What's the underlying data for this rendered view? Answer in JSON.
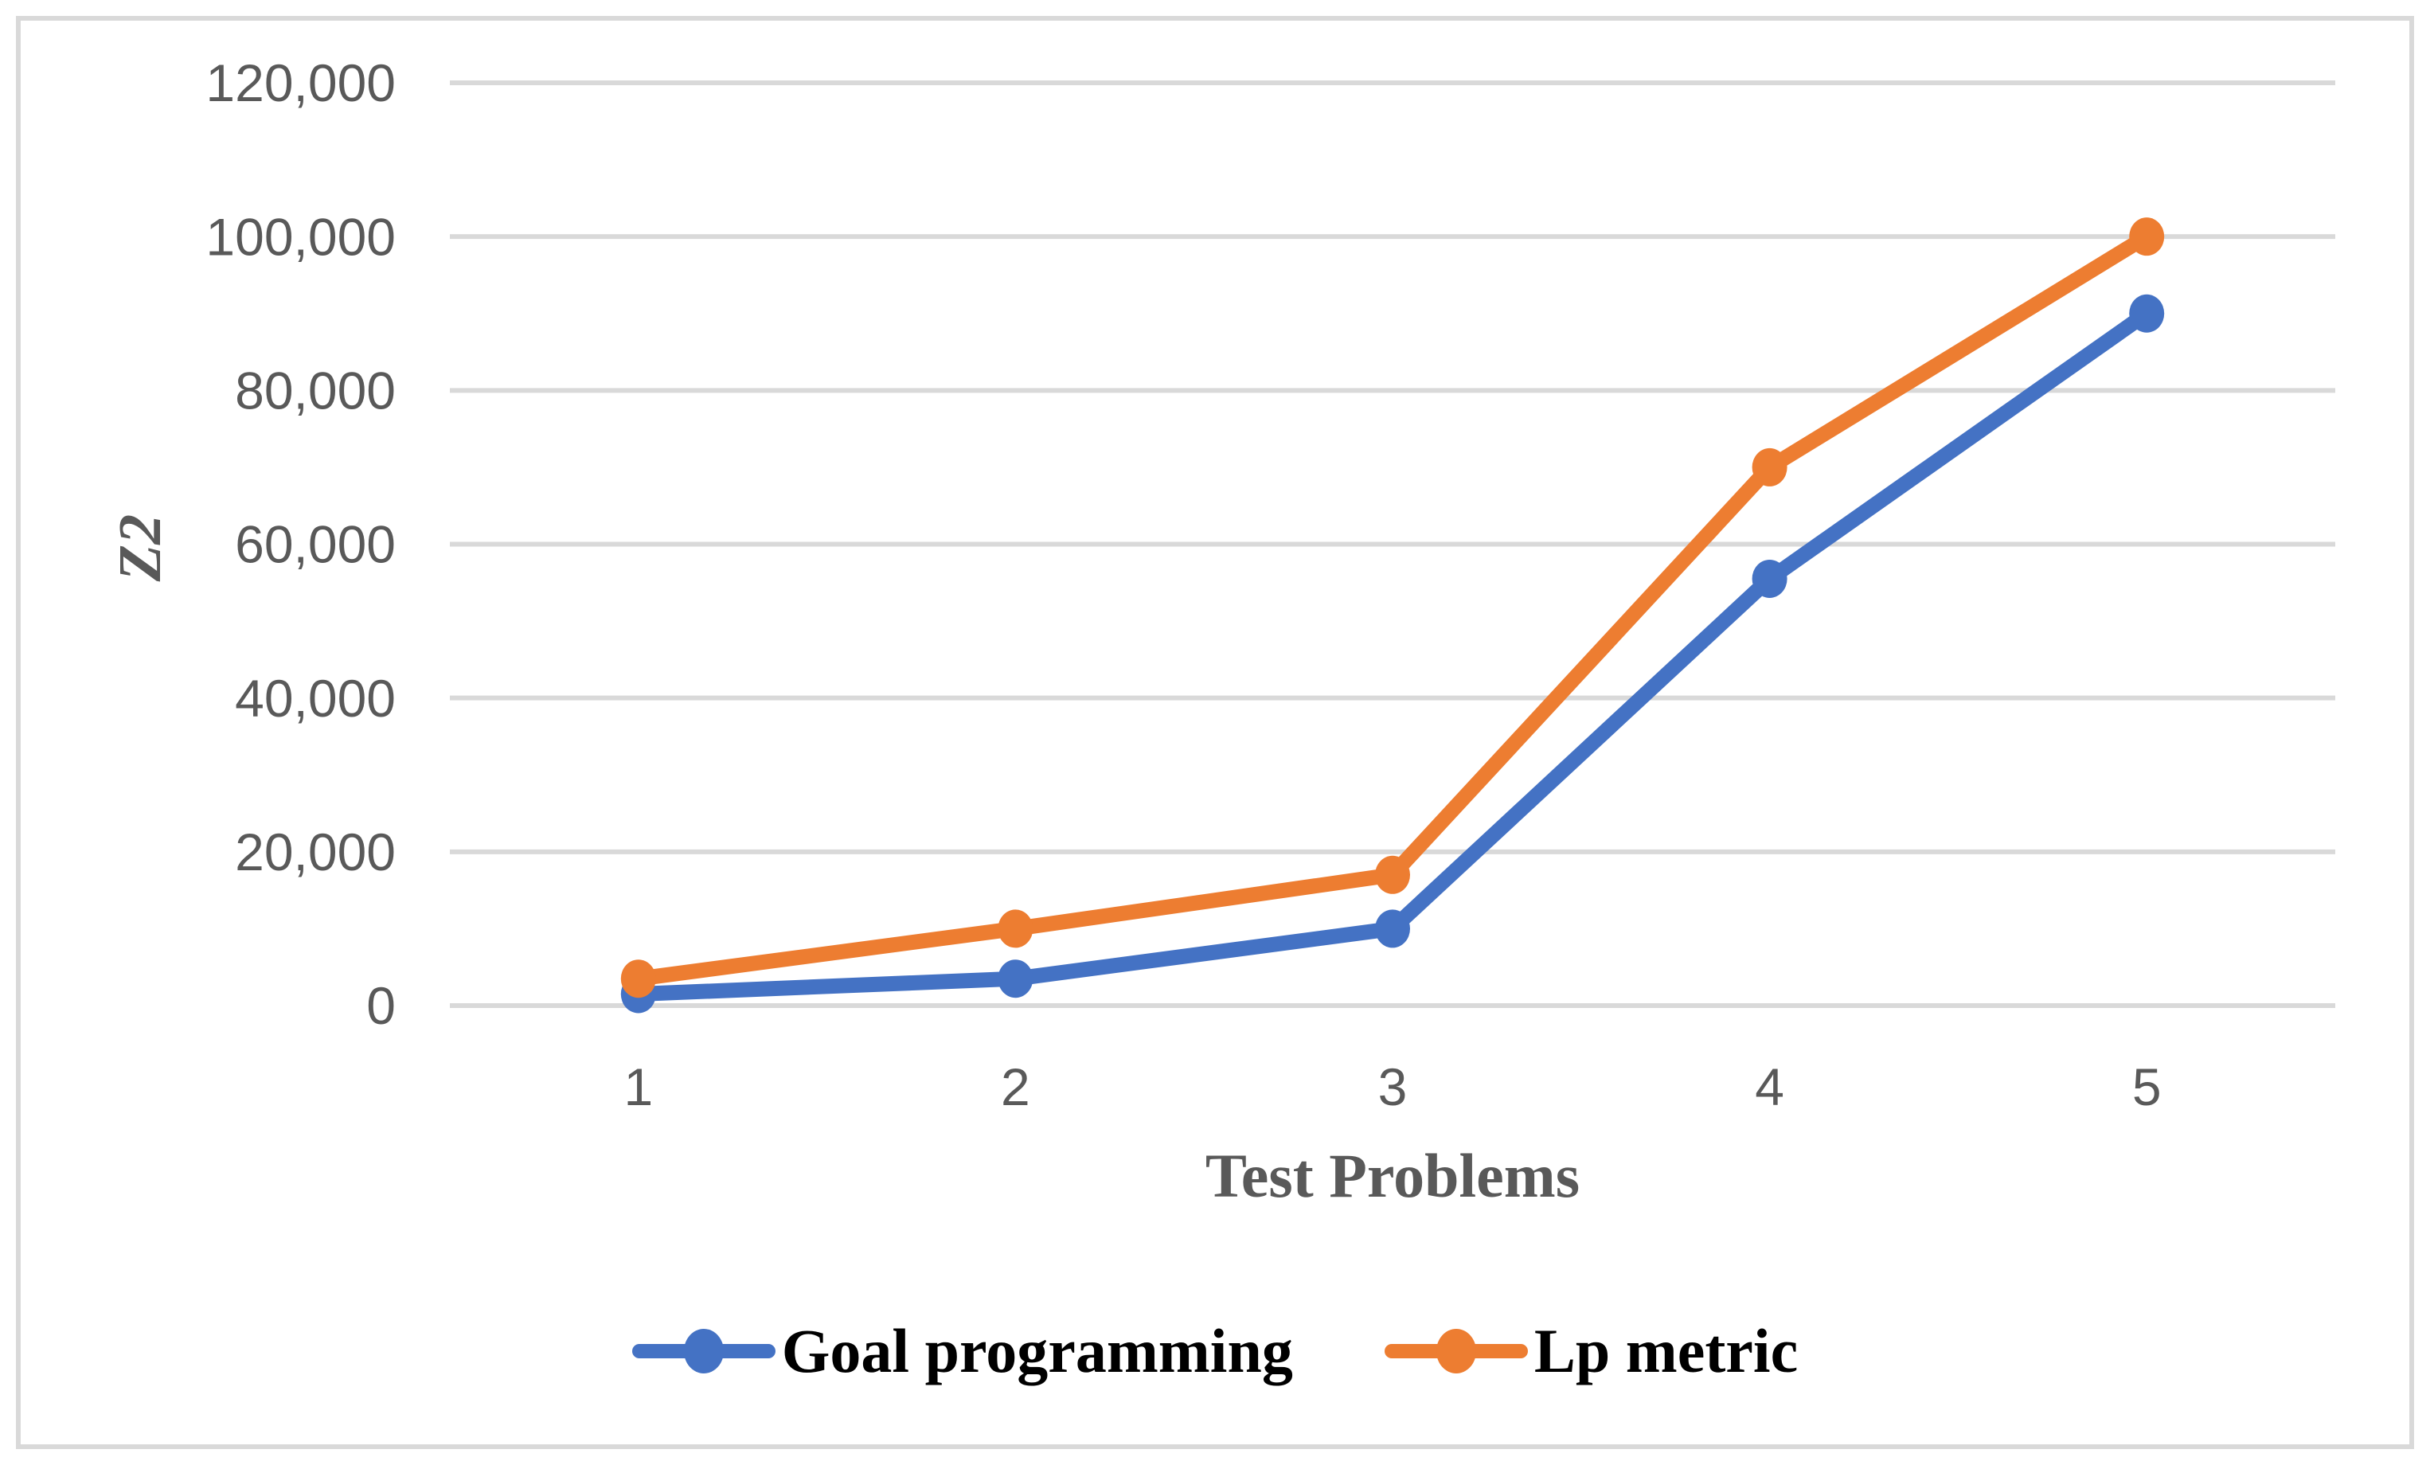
{
  "figure": {
    "background_color": "#FFFFFF",
    "border_color": "#D9D9D9"
  },
  "chart_data": {
    "type": "line",
    "title": "",
    "categories": [
      "1",
      "2",
      "3",
      "4",
      "5"
    ],
    "series": [
      {
        "name": "Goal programming",
        "color": "#4472C4",
        "values": [
          1500,
          3500,
          10000,
          55500,
          90000
        ]
      },
      {
        "name": "Lp metric",
        "color": "#ED7D31",
        "values": [
          3500,
          10000,
          17000,
          70000,
          100000
        ]
      }
    ],
    "xlabel": "Test Problems",
    "ylabel": "Z2",
    "ylim": [
      0,
      120000
    ],
    "ytick_step": 20000,
    "ytick_labels": [
      "0",
      "20,000",
      "40,000",
      "60,000",
      "80,000",
      "100,000",
      "120,000"
    ],
    "grid": true,
    "legend_position": "bottom",
    "axis_text_color": "#595959",
    "gridline_color": "#D9D9D9",
    "legend_text_color": "#000000"
  }
}
